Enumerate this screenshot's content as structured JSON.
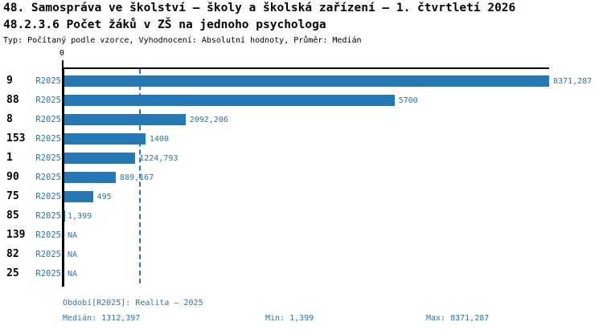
{
  "header": {
    "title": "48. Samospráva ve školství – školy a školská zařízení – 1. čtvrtletí 2026",
    "subtitle": "48.2.3.6 Počet žáků v ZŠ na jednoho psychologa",
    "meta": "Typ: Počítaný podle vzorce, Vyhodnocení: Absolutní hodnoty, Průměr: Medián"
  },
  "colors": {
    "bar_blue": "#2577b5",
    "text_blue": "#2577b5",
    "axis_black": "#000000",
    "background": "#ffffff"
  },
  "chart_data": {
    "type": "bar",
    "orientation": "horizontal",
    "x_axis": {
      "min": 0,
      "max": 8371.287,
      "tick_labels": [
        "0"
      ]
    },
    "median_value": 1312.397,
    "series_name": "R2025",
    "grid": false,
    "rows": [
      {
        "category": "9",
        "series": "R2025",
        "value": 8371.287,
        "value_label": "8371,287"
      },
      {
        "category": "88",
        "series": "R2025",
        "value": 5700,
        "value_label": "5700"
      },
      {
        "category": "8",
        "series": "R2025",
        "value": 2092.206,
        "value_label": "2092,206"
      },
      {
        "category": "153",
        "series": "R2025",
        "value": 1400,
        "value_label": "1400"
      },
      {
        "category": "1",
        "series": "R2025",
        "value": 1224.793,
        "value_label": "1224,793"
      },
      {
        "category": "90",
        "series": "R2025",
        "value": 889.167,
        "value_label": "889,167"
      },
      {
        "category": "75",
        "series": "R2025",
        "value": 495,
        "value_label": "495"
      },
      {
        "category": "85",
        "series": "R2025",
        "value": 1.399,
        "value_label": "1,399"
      },
      {
        "category": "139",
        "series": "R2025",
        "value": null,
        "value_label": "NA"
      },
      {
        "category": "82",
        "series": "R2025",
        "value": null,
        "value_label": "NA"
      },
      {
        "category": "25",
        "series": "R2025",
        "value": null,
        "value_label": "NA"
      }
    ]
  },
  "footer": {
    "period": "Období[R2025]: Realita – 2025",
    "median": "Medián: 1312,397",
    "min": "Min: 1,399",
    "max": "Max: 8371,287"
  }
}
